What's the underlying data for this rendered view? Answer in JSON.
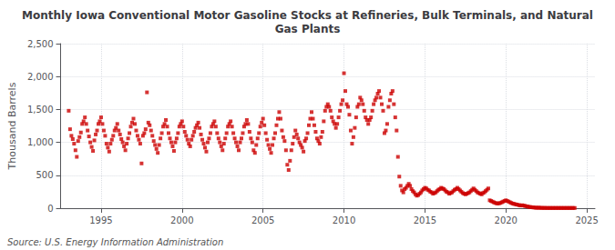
{
  "chart_data": {
    "type": "scatter",
    "title": "Monthly Iowa Conventional Motor Gasoline Stocks at Refineries, Bulk Terminals, and Natural\nGas Plants",
    "ylabel": "Thousand Barrels",
    "annotations": [
      "Source: U.S. Energy Information Administration"
    ],
    "color": "#cc0000",
    "marker": "square",
    "grid": true,
    "xlim": [
      1992.5,
      2025.5
    ],
    "xticks": [
      1995,
      2000,
      2005,
      2010,
      2015,
      2020,
      2025
    ],
    "ylim": [
      0,
      2500
    ],
    "yticks": [
      0,
      500,
      {
        "value": 1000,
        "label": "1,000"
      },
      {
        "value": 1500,
        "label": "1,500"
      },
      {
        "value": 2000,
        "label": "2,000"
      },
      {
        "value": 2500,
        "label": "2,500"
      }
    ],
    "x": [
      1993.0,
      1993.083,
      1993.167,
      1993.25,
      1993.333,
      1993.417,
      1993.5,
      1993.583,
      1993.667,
      1993.75,
      1993.833,
      1993.917,
      1994.0,
      1994.083,
      1994.167,
      1994.25,
      1994.333,
      1994.417,
      1994.5,
      1994.583,
      1994.667,
      1994.75,
      1994.833,
      1994.917,
      1995.0,
      1995.083,
      1995.167,
      1995.25,
      1995.333,
      1995.417,
      1995.5,
      1995.583,
      1995.667,
      1995.75,
      1995.833,
      1995.917,
      1996.0,
      1996.083,
      1996.167,
      1996.25,
      1996.333,
      1996.417,
      1996.5,
      1996.583,
      1996.667,
      1996.75,
      1996.833,
      1996.917,
      1997.0,
      1997.083,
      1997.167,
      1997.25,
      1997.333,
      1997.417,
      1997.5,
      1997.583,
      1997.667,
      1997.75,
      1997.833,
      1997.917,
      1998.0,
      1998.083,
      1998.167,
      1998.25,
      1998.333,
      1998.417,
      1998.5,
      1998.583,
      1998.667,
      1998.75,
      1998.833,
      1998.917,
      1999.0,
      1999.083,
      1999.167,
      1999.25,
      1999.333,
      1999.417,
      1999.5,
      1999.583,
      1999.667,
      1999.75,
      1999.833,
      1999.917,
      2000.0,
      2000.083,
      2000.167,
      2000.25,
      2000.333,
      2000.417,
      2000.5,
      2000.583,
      2000.667,
      2000.75,
      2000.833,
      2000.917,
      2001.0,
      2001.083,
      2001.167,
      2001.25,
      2001.333,
      2001.417,
      2001.5,
      2001.583,
      2001.667,
      2001.75,
      2001.833,
      2001.917,
      2002.0,
      2002.083,
      2002.167,
      2002.25,
      2002.333,
      2002.417,
      2002.5,
      2002.583,
      2002.667,
      2002.75,
      2002.833,
      2002.917,
      2003.0,
      2003.083,
      2003.167,
      2003.25,
      2003.333,
      2003.417,
      2003.5,
      2003.583,
      2003.667,
      2003.75,
      2003.833,
      2003.917,
      2004.0,
      2004.083,
      2004.167,
      2004.25,
      2004.333,
      2004.417,
      2004.5,
      2004.583,
      2004.667,
      2004.75,
      2004.833,
      2004.917,
      2005.0,
      2005.083,
      2005.167,
      2005.25,
      2005.333,
      2005.417,
      2005.5,
      2005.583,
      2005.667,
      2005.75,
      2005.833,
      2005.917,
      2006.0,
      2006.083,
      2006.167,
      2006.25,
      2006.333,
      2006.417,
      2006.5,
      2006.583,
      2006.667,
      2006.75,
      2006.833,
      2006.917,
      2007.0,
      2007.083,
      2007.167,
      2007.25,
      2007.333,
      2007.417,
      2007.5,
      2007.583,
      2007.667,
      2007.75,
      2007.833,
      2007.917,
      2008.0,
      2008.083,
      2008.167,
      2008.25,
      2008.333,
      2008.417,
      2008.5,
      2008.583,
      2008.667,
      2008.75,
      2008.833,
      2008.917,
      2009.0,
      2009.083,
      2009.167,
      2009.25,
      2009.333,
      2009.417,
      2009.5,
      2009.583,
      2009.667,
      2009.75,
      2009.833,
      2009.917,
      2010.0,
      2010.083,
      2010.167,
      2010.25,
      2010.333,
      2010.417,
      2010.5,
      2010.583,
      2010.667,
      2010.75,
      2010.833,
      2010.917,
      2011.0,
      2011.083,
      2011.167,
      2011.25,
      2011.333,
      2011.417,
      2011.5,
      2011.583,
      2011.667,
      2011.75,
      2011.833,
      2011.917,
      2012.0,
      2012.083,
      2012.167,
      2012.25,
      2012.333,
      2012.417,
      2012.5,
      2012.583,
      2012.667,
      2012.75,
      2012.833,
      2012.917,
      2013.0,
      2013.083,
      2013.167,
      2013.25,
      2013.333,
      2013.417,
      2013.5,
      2013.583,
      2013.667,
      2013.75,
      2013.833,
      2013.917,
      2014.0,
      2014.083,
      2014.167,
      2014.25,
      2014.333,
      2014.417,
      2014.5,
      2014.583,
      2014.667,
      2014.75,
      2014.833,
      2014.917,
      2015.0,
      2015.083,
      2015.167,
      2015.25,
      2015.333,
      2015.417,
      2015.5,
      2015.583,
      2015.667,
      2015.75,
      2015.833,
      2015.917,
      2016.0,
      2016.083,
      2016.167,
      2016.25,
      2016.333,
      2016.417,
      2016.5,
      2016.583,
      2016.667,
      2016.75,
      2016.833,
      2016.917,
      2017.0,
      2017.083,
      2017.167,
      2017.25,
      2017.333,
      2017.417,
      2017.5,
      2017.583,
      2017.667,
      2017.75,
      2017.833,
      2017.917,
      2018.0,
      2018.083,
      2018.167,
      2018.25,
      2018.333,
      2018.417,
      2018.5,
      2018.583,
      2018.667,
      2018.75,
      2018.833,
      2018.917,
      2019.0,
      2019.083,
      2019.167,
      2019.25,
      2019.333,
      2019.417,
      2019.5,
      2019.583,
      2019.667,
      2019.75,
      2019.833,
      2019.917,
      2020.0,
      2020.083,
      2020.167,
      2020.25,
      2020.333,
      2020.417,
      2020.5,
      2020.583,
      2020.667,
      2020.75,
      2020.833,
      2020.917,
      2021.0,
      2021.083,
      2021.167,
      2021.25,
      2021.333,
      2021.417,
      2021.5,
      2021.583,
      2021.667,
      2021.75,
      2021.833,
      2021.917,
      2022.0,
      2022.083,
      2022.167,
      2022.25,
      2022.333,
      2022.417,
      2022.5,
      2022.583,
      2022.667,
      2022.75,
      2022.833,
      2022.917,
      2023.0,
      2023.083,
      2023.167,
      2023.25,
      2023.333,
      2023.417,
      2023.5,
      2023.583,
      2023.667,
      2023.75,
      2023.833,
      2023.917,
      2024.0,
      2024.083,
      2024.167,
      2024.25
    ],
    "values": [
      1480,
      1200,
      1100,
      1050,
      980,
      880,
      780,
      1020,
      1080,
      1150,
      1280,
      1320,
      1380,
      1280,
      1180,
      1090,
      1000,
      930,
      870,
      1030,
      1120,
      1180,
      1280,
      1320,
      1380,
      1280,
      1180,
      1100,
      980,
      920,
      860,
      980,
      1040,
      1100,
      1180,
      1220,
      1280,
      1180,
      1120,
      1050,
      1000,
      940,
      880,
      980,
      1060,
      1140,
      1240,
      1300,
      1360,
      1280,
      1180,
      1100,
      1040,
      980,
      680,
      1100,
      1140,
      1200,
      1760,
      1300,
      1260,
      1180,
      1100,
      1020,
      960,
      900,
      840,
      960,
      1060,
      1140,
      1240,
      1280,
      1340,
      1240,
      1140,
      1060,
      1000,
      940,
      870,
      1000,
      1060,
      1140,
      1240,
      1280,
      1320,
      1240,
      1160,
      1100,
      1040,
      980,
      940,
      1040,
      1100,
      1160,
      1220,
      1260,
      1300,
      1220,
      1120,
      1040,
      980,
      920,
      860,
      1000,
      1060,
      1140,
      1240,
      1280,
      1320,
      1240,
      1140,
      1060,
      1000,
      940,
      880,
      980,
      1060,
      1140,
      1240,
      1280,
      1320,
      1240,
      1140,
      1060,
      1000,
      940,
      880,
      1000,
      1060,
      1140,
      1240,
      1280,
      1340,
      1280,
      1160,
      1060,
      1000,
      880,
      840,
      960,
      1060,
      1140,
      1240,
      1300,
      1360,
      1260,
      1140,
      1040,
      960,
      900,
      840,
      960,
      1060,
      1140,
      1260,
      1360,
      1460,
      1360,
      1180,
      1080,
      1020,
      880,
      660,
      580,
      720,
      880,
      980,
      1080,
      1180,
      1120,
      1060,
      1000,
      960,
      920,
      860,
      1020,
      1060,
      1140,
      1260,
      1360,
      1460,
      1360,
      1260,
      1160,
      1060,
      1020,
      980,
      1080,
      1160,
      1320,
      1480,
      1540,
      1580,
      1540,
      1480,
      1380,
      1320,
      1280,
      1220,
      1280,
      1380,
      1480,
      1580,
      1640,
      2050,
      1780,
      1580,
      1540,
      1420,
      1180,
      980,
      1080,
      1220,
      1380,
      1540,
      1580,
      1680,
      1640,
      1580,
      1480,
      1380,
      1340,
      1280,
      1340,
      1380,
      1480,
      1580,
      1640,
      1680,
      1740,
      1780,
      1680,
      1580,
      1480,
      1140,
      1180,
      1280,
      1540,
      1640,
      1740,
      1780,
      1580,
      1380,
      1180,
      780,
      480,
      340,
      270,
      240,
      290,
      310,
      340,
      370,
      340,
      290,
      260,
      240,
      210,
      190,
      200,
      220,
      240,
      270,
      290,
      310,
      300,
      280,
      270,
      250,
      240,
      220,
      230,
      240,
      260,
      280,
      290,
      310,
      300,
      290,
      270,
      250,
      240,
      220,
      230,
      240,
      260,
      280,
      290,
      310,
      290,
      270,
      250,
      230,
      220,
      210,
      220,
      230,
      240,
      260,
      280,
      300,
      280,
      260,
      240,
      230,
      220,
      210,
      230,
      240,
      260,
      280,
      300,
      120,
      110,
      100,
      90,
      80,
      75,
      70,
      75,
      80,
      90,
      100,
      110,
      120,
      110,
      100,
      90,
      80,
      70,
      65,
      60,
      55,
      50,
      45,
      40,
      45,
      40,
      35,
      30,
      25,
      20,
      18,
      15,
      12,
      10,
      8,
      6,
      8,
      6,
      5,
      4,
      4,
      4,
      3,
      3,
      3,
      3,
      3,
      3,
      3,
      3,
      3,
      3,
      3,
      3,
      3,
      3,
      3,
      3,
      3,
      3,
      3,
      3,
      3,
      3
    ]
  }
}
